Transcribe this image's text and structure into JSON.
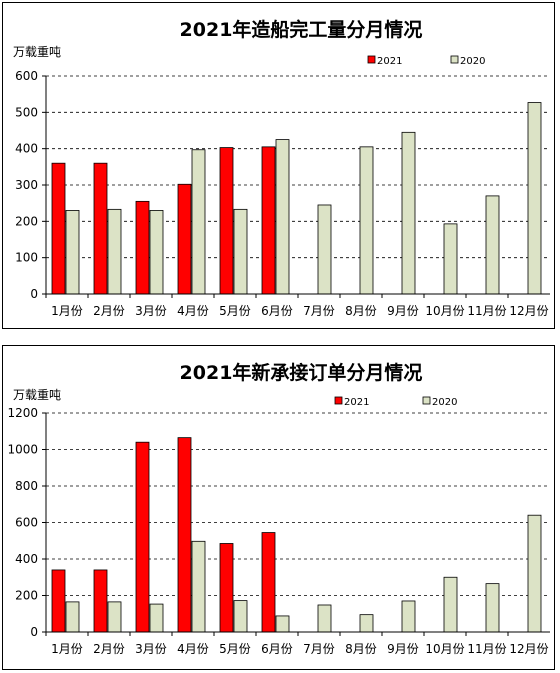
{
  "colors": {
    "series_2021": "#ff0000",
    "series_2020": "#dce3c6",
    "bar_stroke": "#000000",
    "gridline": "#000000"
  },
  "chart_data": [
    {
      "type": "bar",
      "title": "2021年造船完工量分月情况",
      "ylabel": "万载重吨",
      "xlabel": "",
      "categories": [
        "1月份",
        "2月份",
        "3月份",
        "4月份",
        "5月份",
        "6月份",
        "7月份",
        "8月份",
        "9月份",
        "10月份",
        "11月份",
        "12月份"
      ],
      "series": [
        {
          "name": "2021",
          "values": [
            360,
            360,
            255,
            302,
            403,
            405,
            null,
            null,
            null,
            null,
            null,
            null
          ]
        },
        {
          "name": "2020",
          "values": [
            230,
            233,
            230,
            397,
            233,
            425,
            245,
            405,
            445,
            193,
            270,
            527
          ]
        }
      ],
      "ylim": [
        0,
        600
      ],
      "yticks": [
        "0",
        "100",
        "200",
        "300",
        "400",
        "500",
        "600"
      ],
      "grid": "horizontal-dashed",
      "legend": "top-right"
    },
    {
      "type": "bar",
      "title": "2021年新承接订单分月情况",
      "ylabel": "万载重吨",
      "xlabel": "",
      "categories": [
        "1月份",
        "2月份",
        "3月份",
        "4月份",
        "5月份",
        "6月份",
        "7月份",
        "8月份",
        "9月份",
        "10月份",
        "11月份",
        "12月份"
      ],
      "series": [
        {
          "name": "2021",
          "values": [
            340,
            340,
            1040,
            1065,
            485,
            545,
            null,
            null,
            null,
            null,
            null,
            null
          ]
        },
        {
          "name": "2020",
          "values": [
            165,
            165,
            153,
            497,
            172,
            88,
            148,
            95,
            170,
            300,
            265,
            640
          ]
        }
      ],
      "ylim": [
        0,
        1200
      ],
      "yticks": [
        "0",
        "200",
        "400",
        "600",
        "800",
        "1000",
        "1200"
      ],
      "grid": "horizontal-dashed",
      "legend": "top-right"
    }
  ]
}
